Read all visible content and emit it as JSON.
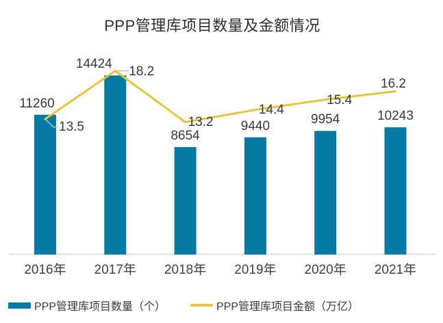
{
  "title": "PPP管理库项目数量及金额情况",
  "colors": {
    "bar": "#077ba3",
    "line": "#e6c43c",
    "leader_line": "#a9c3d4",
    "axis_line": "#d6d6d6",
    "text": "#383838"
  },
  "chart_data": {
    "type": "bar",
    "subtype": "bar+line combo",
    "title": "PPP管理库项目数量及金额情况",
    "categories": [
      "2016年",
      "2017年",
      "2018年",
      "2019年",
      "2020年",
      "2021年"
    ],
    "series": [
      {
        "name": "PPP管理库项目数量（个）",
        "type": "bar",
        "color": "#077ba3",
        "values": [
          11260,
          14424,
          8654,
          9440,
          9954,
          10243
        ]
      },
      {
        "name": "PPP管理库项目金额（万亿）",
        "type": "line",
        "color": "#e6c43c",
        "values": [
          13.5,
          18.2,
          13.2,
          14.4,
          15.4,
          16.2
        ]
      }
    ],
    "xlabel": "",
    "ylabel": "",
    "value_axis_visible": false,
    "data_labels_visible": true,
    "grid": false,
    "legend_position": "bottom"
  },
  "legend": {
    "bar_label": "PPP管理库项目数量（个）",
    "line_label": "PPP管理库项目金额（万亿）"
  }
}
